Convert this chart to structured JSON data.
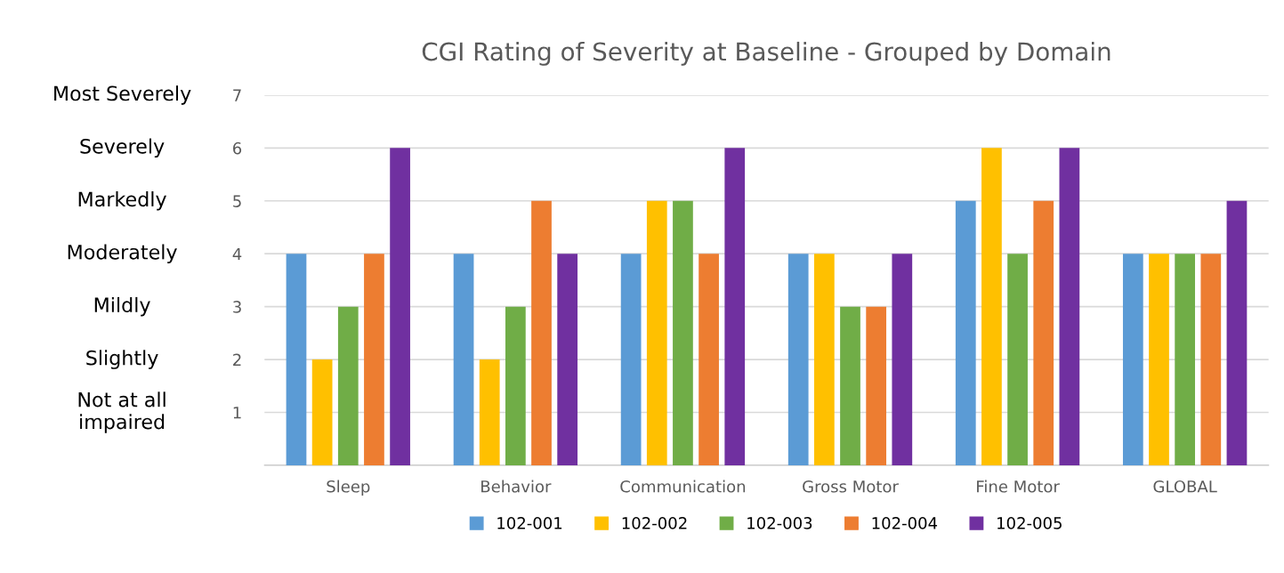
{
  "chart_data": {
    "type": "bar",
    "title": "CGI Rating of Severity at Baseline - Grouped by Domain",
    "categories": [
      "Sleep",
      "Behavior",
      "Communication",
      "Gross Motor",
      "Fine Motor",
      "GLOBAL"
    ],
    "series": [
      {
        "name": "102-001",
        "color": "#5b9bd5",
        "values": [
          4,
          4,
          4,
          4,
          5,
          4
        ]
      },
      {
        "name": "102-002",
        "color": "#ffc000",
        "values": [
          2,
          2,
          5,
          4,
          6,
          4
        ]
      },
      {
        "name": "102-003",
        "color": "#70ad47",
        "values": [
          3,
          3,
          5,
          3,
          4,
          4
        ]
      },
      {
        "name": "102-004",
        "color": "#ed7d31",
        "values": [
          4,
          5,
          4,
          3,
          5,
          4
        ]
      },
      {
        "name": "102-005",
        "color": "#7030a0",
        "values": [
          6,
          4,
          6,
          4,
          6,
          5
        ]
      }
    ],
    "ylim": [
      0,
      7
    ],
    "yticks": [
      1,
      2,
      3,
      4,
      5,
      6,
      7
    ],
    "annotations": [
      "Not at all\nimpaired",
      "Slightly",
      "Mildly",
      "Moderately",
      "Markedly",
      "Severely",
      "Most Severely"
    ],
    "grid": "y",
    "legend": "bottom"
  }
}
